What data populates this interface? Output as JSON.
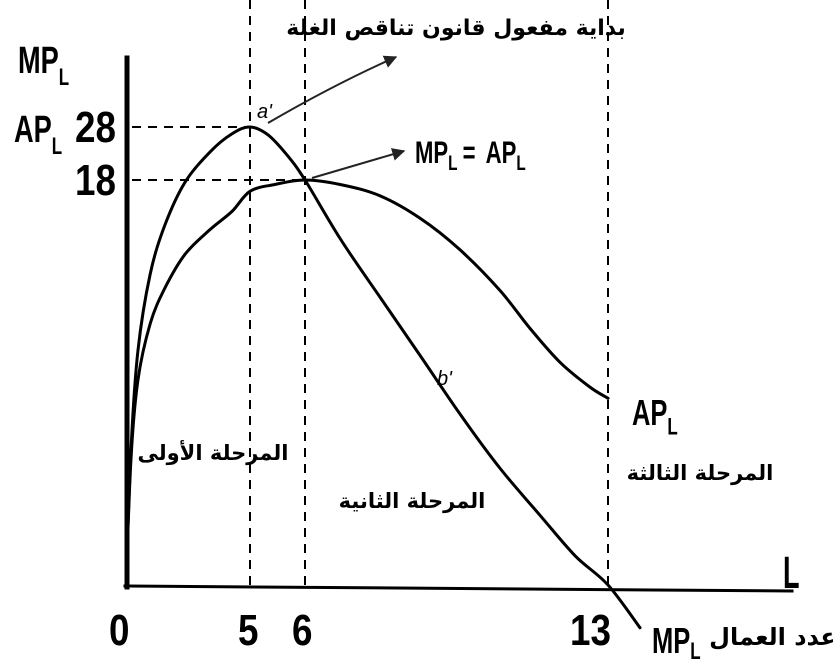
{
  "chart_data": {
    "type": "line",
    "title": "",
    "grid": false,
    "line_color": "#000000",
    "background": "#ffffff",
    "x_axis": {
      "symbol": "L",
      "label": "عدد العمال",
      "ticks": [
        0,
        5,
        6,
        13
      ]
    },
    "y_axis": {
      "labels": [
        {
          "main": "MP",
          "sub": "L"
        },
        {
          "main": "AP",
          "sub": "L"
        }
      ],
      "ticks": [
        28,
        18
      ]
    },
    "series": [
      {
        "name": "MP",
        "name_sub": "L",
        "x": [
          0,
          0.2,
          0.48,
          0.97,
          1.57,
          2.38,
          3.39,
          4.27,
          5,
          5.33,
          5.69,
          6,
          6.81,
          7.73,
          8.66,
          9.58,
          10.5,
          11.43,
          12.24,
          13,
          13.74
        ],
        "y": [
          0,
          6,
          10.4,
          13.8,
          16,
          17.9,
          23.3,
          26.7,
          28,
          26.5,
          22.5,
          18,
          15.4,
          12.8,
          10.2,
          7.6,
          5.2,
          3.1,
          1.3,
          0,
          -1.9
        ]
      },
      {
        "name": "AP",
        "name_sub": "L",
        "x": [
          0,
          0.2,
          0.48,
          0.97,
          1.57,
          2.38,
          3.39,
          4.27,
          5,
          5.45,
          6,
          6.81,
          7.73,
          8.66,
          9.58,
          10.5,
          11.2,
          11.89,
          12.58,
          13
        ],
        "y": [
          0,
          5.6,
          9.1,
          11.6,
          13.2,
          14.7,
          15.8,
          16.6,
          17.5,
          17.8,
          18,
          17.8,
          17.3,
          16.3,
          14.9,
          13.1,
          11.4,
          9.9,
          8.8,
          8.3
        ]
      }
    ],
    "point_labels": [
      "a'",
      "b'"
    ],
    "annotations": {
      "diminishing_returns_start": "بداية مفعول قانون تناقص الغلة",
      "equality": {
        "left": "MP",
        "left_sub": "L",
        "operator": "=",
        "right": "AP",
        "right_sub": "L"
      }
    },
    "stages": [
      "المرحلة الأولى",
      "المرحلة الثانية",
      "المرحلة الثالثة"
    ]
  }
}
